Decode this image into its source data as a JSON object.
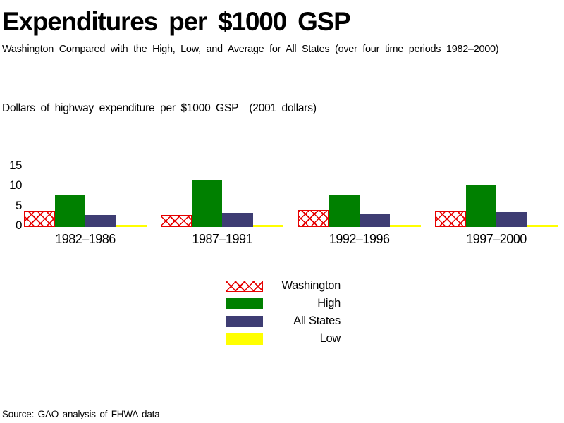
{
  "title": "Expenditures per $1000 GSP",
  "subtitle": "Washington Compared with the High, Low, and Average for All States (over four time periods 1982–2000)",
  "axis_note": "Dollars of highway expenditure per $1000 GSP",
  "axis_note_units": "(2001 dollars)",
  "source": "Source: GAO analysis of FHWA data",
  "colors": {
    "background": "#ffffff",
    "text": "#000000",
    "washington": "#e60000",
    "high": "#008000",
    "all_states": "#3e3d73",
    "low": "#ffff00"
  },
  "chart_data": {
    "type": "bar",
    "title": "Expenditures per $1000 GSP",
    "subtitle": "Washington Compared with the High, Low, and Average for All States (over four time periods 1982–2000)",
    "ylabel": "Dollars of highway expenditure per $1000 GSP (2001 dollars)",
    "xlabel": "",
    "categories": [
      "1982–1986",
      "1987–1991",
      "1992–1996",
      "1997–2000"
    ],
    "series": [
      {
        "name": "Washington",
        "values": [
          4.0,
          3.0,
          4.2,
          4.1
        ],
        "color": "#e60000",
        "pattern": "crosshatch"
      },
      {
        "name": "High",
        "values": [
          8.1,
          11.7,
          8.0,
          10.4
        ],
        "color": "#008000",
        "pattern": "solid"
      },
      {
        "name": "All States",
        "values": [
          2.9,
          3.5,
          3.4,
          3.7
        ],
        "color": "#3e3d73",
        "pattern": "solid"
      },
      {
        "name": "Low",
        "values": [
          0.5,
          0.5,
          0.5,
          0.5
        ],
        "color": "#ffff00",
        "pattern": "solid"
      }
    ],
    "yticks": [
      0,
      5,
      10,
      15
    ],
    "ylim": [
      0,
      15
    ],
    "grid": false,
    "axis_lines": false,
    "legend_position": "bottom-center"
  }
}
